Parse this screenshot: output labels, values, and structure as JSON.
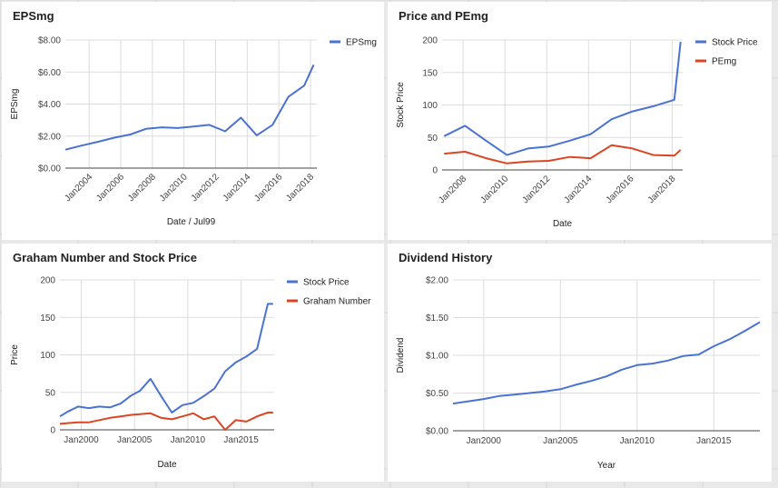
{
  "chart_data": [
    {
      "type": "line",
      "title": "EPSmg",
      "xlabel": "Date / Jul99",
      "ylabel": "EPSmg",
      "xlim": [
        2002.5,
        2018.4
      ],
      "ylim": [
        0,
        8
      ],
      "x_ticks": [
        {
          "v": 2004,
          "label": "Jan2004"
        },
        {
          "v": 2006,
          "label": "Jan2006"
        },
        {
          "v": 2008,
          "label": "Jan2008"
        },
        {
          "v": 2010,
          "label": "Jan2010"
        },
        {
          "v": 2012,
          "label": "Jan2012"
        },
        {
          "v": 2014,
          "label": "Jan2014"
        },
        {
          "v": 2016,
          "label": "Jan2016"
        },
        {
          "v": 2018,
          "label": "Jan2018"
        }
      ],
      "y_ticks": [
        {
          "v": 0,
          "label": "$0.00"
        },
        {
          "v": 2,
          "label": "$2.00"
        },
        {
          "v": 4,
          "label": "$4.00"
        },
        {
          "v": 6,
          "label": "$6.00"
        },
        {
          "v": 8,
          "label": "$8.00"
        }
      ],
      "x_tick_rotate": true,
      "legend": "top-right",
      "grid": true,
      "series": [
        {
          "name": "EPSmg",
          "color": "#4a72d2",
          "x": [
            2002.5,
            2003.5,
            2004.6,
            2005.6,
            2006.6,
            2007.6,
            2008.6,
            2009.6,
            2010.6,
            2011.6,
            2012.6,
            2013.6,
            2014.6,
            2015.6,
            2016.6,
            2017.6,
            2018.2
          ],
          "y": [
            1.15,
            1.4,
            1.65,
            1.9,
            2.1,
            2.45,
            2.55,
            2.5,
            2.6,
            2.7,
            2.3,
            3.15,
            2.05,
            2.7,
            4.45,
            5.15,
            6.45
          ]
        }
      ]
    },
    {
      "type": "line",
      "title": "Price and PEmg",
      "xlabel": "Date",
      "ylabel": "Stock Price",
      "xlim": [
        2007,
        2018.5
      ],
      "ylim": [
        0,
        200
      ],
      "x_ticks": [
        {
          "v": 2008,
          "label": "Jan2008"
        },
        {
          "v": 2010,
          "label": "Jan2010"
        },
        {
          "v": 2012,
          "label": "Jan2012"
        },
        {
          "v": 2014,
          "label": "Jan2014"
        },
        {
          "v": 2016,
          "label": "Jan2016"
        },
        {
          "v": 2018,
          "label": "Jan2018"
        }
      ],
      "y_ticks": [
        {
          "v": 0,
          "label": "0"
        },
        {
          "v": 50,
          "label": "50"
        },
        {
          "v": 100,
          "label": "100"
        },
        {
          "v": 150,
          "label": "150"
        },
        {
          "v": 200,
          "label": "200"
        }
      ],
      "x_tick_rotate": true,
      "legend": "top-right",
      "grid": true,
      "series": [
        {
          "name": "Stock Price",
          "color": "#4a72d2",
          "x": [
            2007.1,
            2008.1,
            2009.1,
            2010.1,
            2011.1,
            2012.1,
            2013.1,
            2014.1,
            2015.1,
            2016.1,
            2017.1,
            2018.1,
            2018.4
          ],
          "y": [
            52,
            68,
            45,
            23,
            33,
            36,
            45,
            55,
            78,
            90,
            98,
            108,
            197
          ]
        },
        {
          "name": "PEmg",
          "color": "#dc4422",
          "x": [
            2007.1,
            2008.1,
            2009.1,
            2010.1,
            2011.1,
            2012.1,
            2013.1,
            2014.1,
            2015.1,
            2016.1,
            2017.1,
            2018.1,
            2018.4
          ],
          "y": [
            25,
            28,
            18,
            10,
            13,
            14,
            20,
            18,
            38,
            33,
            23,
            22,
            31
          ]
        }
      ]
    },
    {
      "type": "line",
      "title": "Graham Number and Stock Price",
      "xlabel": "Date",
      "ylabel": "Price",
      "xlim": [
        1998,
        2018.1
      ],
      "ylim": [
        0,
        200
      ],
      "x_ticks": [
        {
          "v": 2000,
          "label": "Jan2000"
        },
        {
          "v": 2005,
          "label": "Jan2005"
        },
        {
          "v": 2010,
          "label": "Jan2010"
        },
        {
          "v": 2015,
          "label": "Jan2015"
        }
      ],
      "y_ticks": [
        {
          "v": 0,
          "label": "0"
        },
        {
          "v": 50,
          "label": "50"
        },
        {
          "v": 100,
          "label": "100"
        },
        {
          "v": 150,
          "label": "150"
        },
        {
          "v": 200,
          "label": "200"
        }
      ],
      "x_tick_rotate": false,
      "legend": "top-right",
      "grid": true,
      "series": [
        {
          "name": "Stock Price",
          "color": "#4a72d2",
          "x": [
            1998,
            1998.7,
            1999.7,
            2000.7,
            2001.7,
            2002.7,
            2003.7,
            2004.7,
            2005.5,
            2006.5,
            2007.5,
            2008.5,
            2009.5,
            2010.5,
            2011.5,
            2012.5,
            2013.5,
            2014.5,
            2015.5,
            2016.5,
            2017.5,
            2018
          ],
          "y": [
            18,
            24,
            31,
            29,
            31,
            30,
            35,
            46,
            52,
            68,
            45,
            23,
            33,
            36,
            45,
            55,
            78,
            90,
            98,
            108,
            168,
            168
          ]
        },
        {
          "name": "Graham Number",
          "color": "#dc4422",
          "x": [
            1998,
            1998.7,
            1999.7,
            2000.7,
            2001.7,
            2002.7,
            2003.7,
            2004.7,
            2005.5,
            2006.5,
            2007.5,
            2008.5,
            2009.5,
            2010.5,
            2011.5,
            2012.5,
            2013.5,
            2014.5,
            2015.5,
            2016.5,
            2017.5,
            2018
          ],
          "y": [
            8,
            9,
            10,
            10,
            13,
            16,
            18,
            20,
            21,
            22,
            16,
            14,
            18,
            22,
            14,
            18,
            0,
            13,
            11,
            18,
            23,
            23
          ]
        }
      ]
    },
    {
      "type": "line",
      "title": "Dividend History",
      "xlabel": "Year",
      "ylabel": "Dividend",
      "xlim": [
        1998,
        2018
      ],
      "ylim": [
        0,
        2
      ],
      "x_ticks": [
        {
          "v": 2000,
          "label": "Jan2000"
        },
        {
          "v": 2005,
          "label": "Jan2005"
        },
        {
          "v": 2010,
          "label": "Jan2010"
        },
        {
          "v": 2015,
          "label": "Jan2015"
        }
      ],
      "y_ticks": [
        {
          "v": 0,
          "label": "$0.00"
        },
        {
          "v": 0.5,
          "label": "$0.50"
        },
        {
          "v": 1,
          "label": "$1.00"
        },
        {
          "v": 1.5,
          "label": "$1.50"
        },
        {
          "v": 2,
          "label": "$2.00"
        }
      ],
      "x_tick_rotate": false,
      "legend": "none",
      "grid": true,
      "series": [
        {
          "name": "",
          "color": "#4a72d2",
          "x": [
            1998,
            1999,
            2000,
            2001,
            2002,
            2003,
            2004,
            2005,
            2006,
            2007,
            2008,
            2009,
            2010,
            2011,
            2012,
            2013,
            2014,
            2015,
            2016,
            2017,
            2018
          ],
          "y": [
            0.36,
            0.39,
            0.42,
            0.46,
            0.48,
            0.5,
            0.52,
            0.55,
            0.61,
            0.66,
            0.72,
            0.81,
            0.87,
            0.89,
            0.93,
            0.99,
            1.01,
            1.12,
            1.21,
            1.32,
            1.44
          ]
        }
      ]
    }
  ]
}
